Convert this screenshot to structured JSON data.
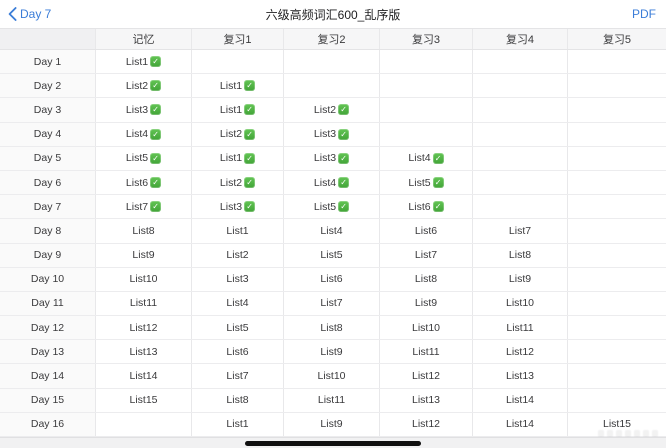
{
  "nav": {
    "back_label": "Day 7",
    "title": "六级高频词汇600_乱序版",
    "pdf_label": "PDF"
  },
  "colors": {
    "accent_blue": "#3b7dd8",
    "check_green": "#4cb944",
    "header_bg": "#f6f6f7",
    "border": "#e8e8ea"
  },
  "icons": {
    "back_chevron": "chevron-left",
    "check": "checkmark"
  },
  "table": {
    "columns": [
      "记忆",
      "复习1",
      "复习2",
      "复习3",
      "复习4",
      "复习5"
    ],
    "rows": [
      {
        "label": "Day 1",
        "checked": true,
        "cells": [
          "List1",
          "",
          "",
          "",
          "",
          ""
        ]
      },
      {
        "label": "Day 2",
        "checked": true,
        "cells": [
          "List2",
          "List1",
          "",
          "",
          "",
          ""
        ]
      },
      {
        "label": "Day 3",
        "checked": true,
        "cells": [
          "List3",
          "List1",
          "List2",
          "",
          "",
          ""
        ]
      },
      {
        "label": "Day 4",
        "checked": true,
        "cells": [
          "List4",
          "List2",
          "List3",
          "",
          "",
          ""
        ]
      },
      {
        "label": "Day 5",
        "checked": true,
        "cells": [
          "List5",
          "List1",
          "List3",
          "List4",
          "",
          ""
        ]
      },
      {
        "label": "Day 6",
        "checked": true,
        "cells": [
          "List6",
          "List2",
          "List4",
          "List5",
          "",
          ""
        ]
      },
      {
        "label": "Day 7",
        "checked": true,
        "cells": [
          "List7",
          "List3",
          "List5",
          "List6",
          "",
          ""
        ]
      },
      {
        "label": "Day 8",
        "checked": false,
        "cells": [
          "List8",
          "List1",
          "List4",
          "List6",
          "List7",
          ""
        ]
      },
      {
        "label": "Day 9",
        "checked": false,
        "cells": [
          "List9",
          "List2",
          "List5",
          "List7",
          "List8",
          ""
        ]
      },
      {
        "label": "Day 10",
        "checked": false,
        "cells": [
          "List10",
          "List3",
          "List6",
          "List8",
          "List9",
          ""
        ]
      },
      {
        "label": "Day 11",
        "checked": false,
        "cells": [
          "List11",
          "List4",
          "List7",
          "List9",
          "List10",
          ""
        ]
      },
      {
        "label": "Day 12",
        "checked": false,
        "cells": [
          "List12",
          "List5",
          "List8",
          "List10",
          "List11",
          ""
        ]
      },
      {
        "label": "Day 13",
        "checked": false,
        "cells": [
          "List13",
          "List6",
          "List9",
          "List11",
          "List12",
          ""
        ]
      },
      {
        "label": "Day 14",
        "checked": false,
        "cells": [
          "List14",
          "List7",
          "List10",
          "List12",
          "List13",
          ""
        ]
      },
      {
        "label": "Day 15",
        "checked": false,
        "cells": [
          "List15",
          "List8",
          "List11",
          "List13",
          "List14",
          ""
        ]
      },
      {
        "label": "Day 16",
        "checked": false,
        "cells": [
          "",
          "List1",
          "List9",
          "List12",
          "List14",
          "List15"
        ]
      }
    ]
  }
}
